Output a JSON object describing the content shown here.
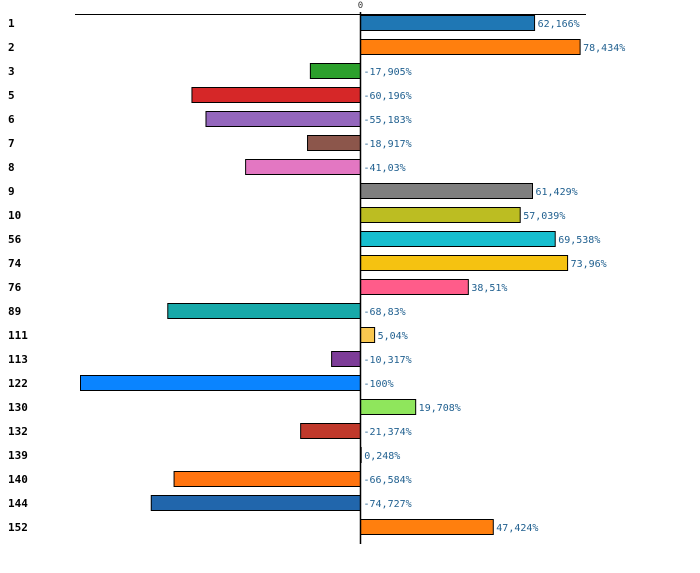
{
  "chart_data": {
    "type": "bar",
    "orientation": "horizontal",
    "title": "",
    "xlabel": "",
    "ylabel": "",
    "xlim": [
      -100,
      80
    ],
    "zero_tick_label": "0",
    "grid": false,
    "categories": [
      "1",
      "2",
      "3",
      "5",
      "6",
      "7",
      "8",
      "9",
      "10",
      "56",
      "74",
      "76",
      "89",
      "111",
      "113",
      "122",
      "130",
      "132",
      "139",
      "140",
      "144",
      "152"
    ],
    "values": [
      62.166,
      78.434,
      -17.905,
      -60.196,
      -55.183,
      -18.917,
      -41.03,
      61.429,
      57.039,
      69.538,
      73.96,
      38.51,
      -68.83,
      5.04,
      -10.317,
      -100,
      19.708,
      -21.374,
      0.248,
      -66.584,
      -74.727,
      47.424
    ],
    "value_labels": [
      "62,166%",
      "78,434%",
      "-17,905%",
      "-60,196%",
      "-55,183%",
      "-18,917%",
      "-41,03%",
      "61,429%",
      "57,039%",
      "69,538%",
      "73,96%",
      "38,51%",
      "-68,83%",
      "5,04%",
      "-10,317%",
      "-100%",
      "19,708%",
      "-21,374%",
      "0,248%",
      "-66,584%",
      "-74,727%",
      "47,424%"
    ],
    "colors": [
      "#1f77b4",
      "#ff7f0e",
      "#2ca02c",
      "#d62728",
      "#9467bd",
      "#8c564b",
      "#e377c2",
      "#7f7f7f",
      "#bcbd22",
      "#17becf",
      "#f5c211",
      "#ff5c8a",
      "#17a9a9",
      "#f9c74f",
      "#7d3c98",
      "#0a84ff",
      "#8fe65c",
      "#c0392b",
      "#aaaaaa",
      "#ff7410",
      "#2166ac",
      "#ff7f0e"
    ]
  }
}
